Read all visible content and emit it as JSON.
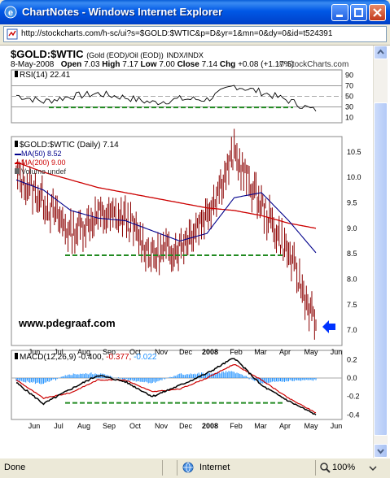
{
  "window": {
    "title": "ChartNotes - Windows Internet Explorer"
  },
  "address": {
    "url": "http://stockcharts.com/h-sc/ui?s=$GOLD:$WTIC&p=D&yr=1&mn=0&dy=0&id=t524391"
  },
  "chart": {
    "symbol": "$GOLD:$WTIC",
    "description": "(Gold (EOD)/Oil (EOD))",
    "exchange": "INDX/INDX",
    "date": "8-May-2008",
    "open_label": "Open",
    "open": "7.03",
    "high_label": "High",
    "high": "7.17",
    "low_label": "Low",
    "low": "7.00",
    "close_label": "Close",
    "close": "7.14",
    "chg_label": "Chg",
    "chg": "+0.08 (+1.17%)",
    "credit": "© StockCharts.com",
    "watermark": "www.pdegraaf.com"
  },
  "rsi_panel": {
    "label": "RSI(14) 22.41"
  },
  "price_panel": {
    "label": "$GOLD:$WTIC (Daily) 7.14",
    "ma50": "MA(50) 8.52",
    "ma200": "MA(200) 9.00",
    "volume": "Volume undef"
  },
  "macd_panel": {
    "label_prefix": "MACD(12,26,9)",
    "macd": "-0.400,",
    "signal": "-0.377,",
    "hist": "-0.022"
  },
  "months": [
    "Jun",
    "Jul",
    "Aug",
    "Sep",
    "Oct",
    "Nov",
    "Dec",
    "2008",
    "Feb",
    "Mar",
    "Apr",
    "May",
    "Jun"
  ],
  "colors": {
    "ma200": "#CC0000",
    "ma50": "#00008B",
    "price": "#8B0000",
    "support": "#228B22",
    "arrow": "#0033FF",
    "hist": "#1E90FF"
  },
  "chart_data": [
    {
      "type": "line",
      "title": "RSI(14) 22.41",
      "ylim": [
        0,
        100
      ],
      "y_ticks": [
        10,
        30,
        50,
        70,
        90
      ],
      "x": [
        "Jun",
        "Jul",
        "Aug",
        "Sep",
        "Oct",
        "Nov",
        "Dec",
        "2008",
        "Feb",
        "Mar",
        "Apr",
        "May"
      ],
      "series": [
        {
          "name": "RSI(14)",
          "values": [
            52,
            40,
            50,
            55,
            48,
            38,
            45,
            44,
            70,
            58,
            42,
            22
          ]
        }
      ]
    },
    {
      "type": "line",
      "title": "$GOLD:$WTIC (Daily) 7.14",
      "ylim": [
        6.7,
        10.8
      ],
      "y_ticks": [
        7.0,
        7.5,
        8.0,
        8.5,
        9.0,
        9.5,
        10.0,
        10.5
      ],
      "x": [
        "Jun",
        "Jul",
        "Aug",
        "Sep",
        "Oct",
        "Nov",
        "Dec",
        "2008",
        "Feb",
        "Mar",
        "Apr",
        "May"
      ],
      "series": [
        {
          "name": "$GOLD:$WTIC",
          "values": [
            10.05,
            9.55,
            8.9,
            9.25,
            9.2,
            8.45,
            8.65,
            9.3,
            10.45,
            9.45,
            8.5,
            7.1
          ]
        },
        {
          "name": "MA(50)",
          "values": [
            9.95,
            9.75,
            9.35,
            9.2,
            9.15,
            8.95,
            8.75,
            8.9,
            9.6,
            9.7,
            9.15,
            8.52
          ]
        },
        {
          "name": "MA(200)",
          "values": [
            10.3,
            10.1,
            9.95,
            9.8,
            9.7,
            9.6,
            9.5,
            9.4,
            9.35,
            9.25,
            9.1,
            9.0
          ]
        }
      ]
    },
    {
      "type": "line",
      "title": "MACD(12,26,9) -0.400, -0.377, -0.022",
      "ylim": [
        -0.45,
        0.3
      ],
      "y_ticks": [
        -0.4,
        -0.2,
        0.0,
        0.2
      ],
      "x": [
        "Jun",
        "Jul",
        "Aug",
        "Sep",
        "Oct",
        "Nov",
        "Dec",
        "2008",
        "Feb",
        "Mar",
        "Apr",
        "May"
      ],
      "series": [
        {
          "name": "MACD",
          "values": [
            -0.05,
            -0.28,
            -0.12,
            0.03,
            -0.04,
            -0.2,
            -0.08,
            0.05,
            0.22,
            -0.08,
            -0.25,
            -0.4
          ]
        },
        {
          "name": "Signal",
          "values": [
            -0.02,
            -0.22,
            -0.16,
            -0.02,
            -0.02,
            -0.15,
            -0.12,
            0.0,
            0.15,
            -0.02,
            -0.22,
            -0.377
          ]
        }
      ]
    }
  ]
}
